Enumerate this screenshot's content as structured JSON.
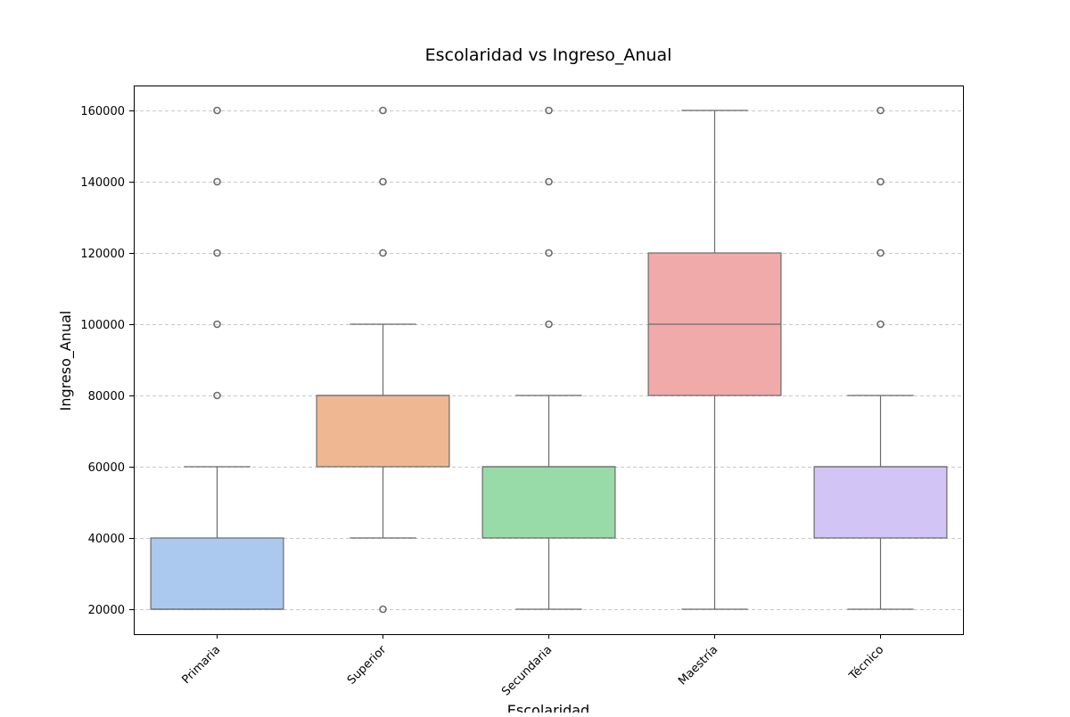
{
  "chart_data": {
    "type": "boxplot",
    "title": "Escolaridad vs Ingreso_Anual",
    "xlabel": "Escolaridad",
    "ylabel": "Ingreso_Anual",
    "ylim": [
      13000,
      167000
    ],
    "yticks": [
      20000,
      40000,
      60000,
      80000,
      100000,
      120000,
      140000,
      160000
    ],
    "grid": "horizontal dashed",
    "categories": [
      "Primaria",
      "Superior",
      "Secundaria",
      "Maestría",
      "Técnico"
    ],
    "boxes": [
      {
        "category": "Primaria",
        "whisker_low": 20000,
        "q1": 20000,
        "median": 20000,
        "q3": 40000,
        "whisker_high": 60000,
        "outliers": [
          80000,
          100000,
          120000,
          140000,
          160000
        ],
        "color": "#abc9ee"
      },
      {
        "category": "Superior",
        "whisker_low": 40000,
        "q1": 60000,
        "median": 80000,
        "q3": 80000,
        "whisker_high": 100000,
        "outliers": [
          20000,
          120000,
          140000,
          160000
        ],
        "color": "#f0b892"
      },
      {
        "category": "Secundaria",
        "whisker_low": 20000,
        "q1": 40000,
        "median": 60000,
        "q3": 60000,
        "whisker_high": 80000,
        "outliers": [
          100000,
          120000,
          140000,
          160000
        ],
        "color": "#99daa9"
      },
      {
        "category": "Maestría",
        "whisker_low": 20000,
        "q1": 80000,
        "median": 100000,
        "q3": 120000,
        "whisker_high": 160000,
        "outliers": [],
        "color": "#f0aaa9"
      },
      {
        "category": "Técnico",
        "whisker_low": 20000,
        "q1": 40000,
        "median": 60000,
        "q3": 60000,
        "whisker_high": 80000,
        "outliers": [
          100000,
          120000,
          140000,
          160000
        ],
        "color": "#d2c4f5"
      }
    ]
  }
}
